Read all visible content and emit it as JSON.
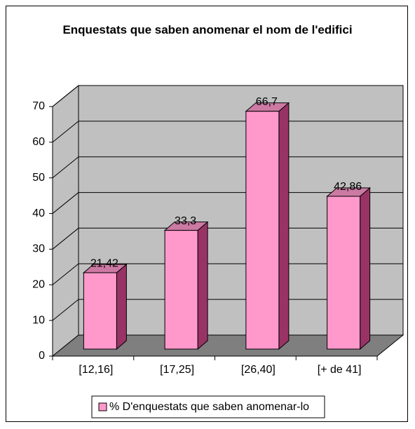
{
  "chart_data": {
    "type": "bar",
    "title": "Enquestats que saben anomenar el nom de l'edifici",
    "categories": [
      "[12,16]",
      "[17,25]",
      "[26,40]",
      "[+ de 41]"
    ],
    "series": [
      {
        "name": "% D'enquestats que saben anomenar-lo",
        "color": "#ff99cc",
        "values": [
          21.42,
          33.3,
          66.7,
          42.86
        ],
        "value_labels": [
          "21,42",
          "33,3",
          "66,7",
          "42,86"
        ]
      }
    ],
    "ylim": [
      0,
      70
    ],
    "yticks": [
      0,
      10,
      20,
      30,
      40,
      50,
      60,
      70
    ],
    "grid": true,
    "legend": "bottom"
  }
}
